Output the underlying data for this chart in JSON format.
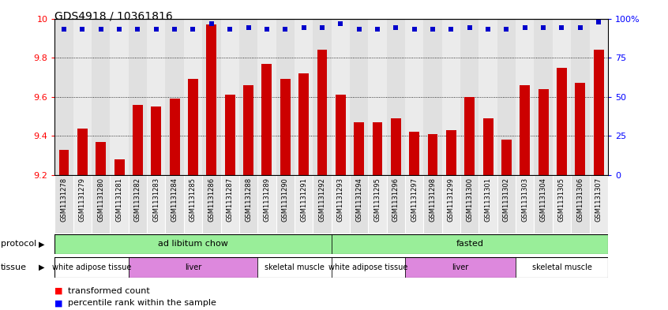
{
  "title": "GDS4918 / 10361816",
  "samples": [
    "GSM1131278",
    "GSM1131279",
    "GSM1131280",
    "GSM1131281",
    "GSM1131282",
    "GSM1131283",
    "GSM1131284",
    "GSM1131285",
    "GSM1131286",
    "GSM1131287",
    "GSM1131288",
    "GSM1131289",
    "GSM1131290",
    "GSM1131291",
    "GSM1131292",
    "GSM1131293",
    "GSM1131294",
    "GSM1131295",
    "GSM1131296",
    "GSM1131297",
    "GSM1131298",
    "GSM1131299",
    "GSM1131300",
    "GSM1131301",
    "GSM1131302",
    "GSM1131303",
    "GSM1131304",
    "GSM1131305",
    "GSM1131306",
    "GSM1131307"
  ],
  "bar_values": [
    9.33,
    9.44,
    9.37,
    9.28,
    9.56,
    9.55,
    9.59,
    9.69,
    9.97,
    9.61,
    9.66,
    9.77,
    9.69,
    9.72,
    9.84,
    9.61,
    9.47,
    9.47,
    9.49,
    9.42,
    9.41,
    9.43,
    9.6,
    9.49,
    9.38,
    9.66,
    9.64,
    9.75,
    9.67,
    9.84
  ],
  "percentile_values": [
    93,
    93,
    93,
    93,
    93,
    93,
    93,
    93,
    97,
    93,
    94,
    93,
    93,
    94,
    94,
    97,
    93,
    93,
    94,
    93,
    93,
    93,
    94,
    93,
    93,
    94,
    94,
    94,
    94,
    98
  ],
  "ymin": 9.2,
  "ymax": 10.0,
  "yticks_left": [
    9.2,
    9.4,
    9.6,
    9.8,
    10.0
  ],
  "ytick_labels_left": [
    "9.2",
    "9.4",
    "9.6",
    "9.8",
    "10"
  ],
  "yticks_right": [
    0,
    25,
    50,
    75,
    100
  ],
  "ytick_labels_right": [
    "0",
    "25",
    "50",
    "75",
    "100%"
  ],
  "bar_color": "#cc0000",
  "dot_color": "#0000cc",
  "grid_lines_at": [
    9.4,
    9.6,
    9.8
  ],
  "protocol_data": [
    {
      "label": "ad libitum chow",
      "start": 0,
      "end": 14,
      "color": "#99ee99"
    },
    {
      "label": "fasted",
      "start": 15,
      "end": 29,
      "color": "#99ee99"
    }
  ],
  "tissue_data": [
    {
      "label": "white adipose tissue",
      "start": 0,
      "end": 3,
      "color": "#ffffff"
    },
    {
      "label": "liver",
      "start": 4,
      "end": 10,
      "color": "#dd88dd"
    },
    {
      "label": "skeletal muscle",
      "start": 11,
      "end": 14,
      "color": "#ffffff"
    },
    {
      "label": "white adipose tissue",
      "start": 15,
      "end": 18,
      "color": "#ffffff"
    },
    {
      "label": "liver",
      "start": 19,
      "end": 24,
      "color": "#dd88dd"
    },
    {
      "label": "skeletal muscle",
      "start": 25,
      "end": 29,
      "color": "#ffffff"
    }
  ],
  "legend_red_label": "transformed count",
  "legend_blue_label": "percentile rank within the sample",
  "col_bg_even": "#e0e0e0",
  "col_bg_odd": "#ebebeb"
}
